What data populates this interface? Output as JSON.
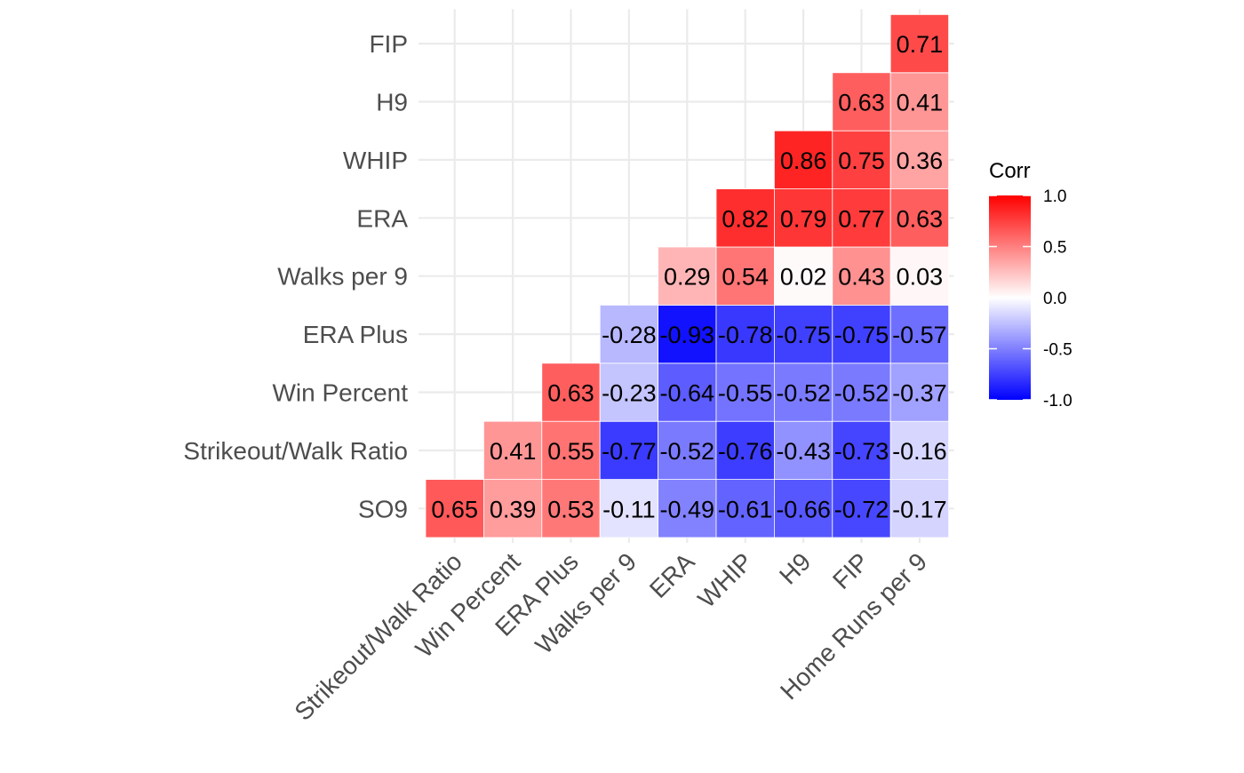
{
  "chart_data": {
    "type": "heatmap",
    "title": "",
    "xlabel": "",
    "ylabel": "",
    "x_categories": [
      "Strikeout/Walk Ratio",
      "Win Percent",
      "ERA Plus",
      "Walks per 9",
      "ERA",
      "WHIP",
      "H9",
      "FIP",
      "Home Runs per 9"
    ],
    "y_categories": [
      "SO9",
      "Strikeout/Walk Ratio",
      "Win Percent",
      "ERA Plus",
      "Walks per 9",
      "ERA",
      "WHIP",
      "H9",
      "FIP"
    ],
    "value_labels": [
      [
        "0.65",
        "0.39",
        "0.53",
        "-0.11",
        "-0.49",
        "-0.61",
        "-0.66",
        "-0.72",
        "-0.17"
      ],
      [
        null,
        "0.41",
        "0.55",
        "-0.77",
        "-0.52",
        "-0.76",
        "-0.43",
        "-0.73",
        "-0.16"
      ],
      [
        null,
        null,
        "0.63",
        "-0.23",
        "-0.64",
        "-0.55",
        "-0.52",
        "-0.52",
        "-0.37"
      ],
      [
        null,
        null,
        null,
        "-0.28",
        "-0.93",
        "-0.78",
        "-0.75",
        "-0.75",
        "-0.57"
      ],
      [
        null,
        null,
        null,
        null,
        "0.29",
        "0.54",
        "0.02",
        "0.43",
        "0.03"
      ],
      [
        null,
        null,
        null,
        null,
        null,
        "0.82",
        "0.79",
        "0.77",
        "0.63"
      ],
      [
        null,
        null,
        null,
        null,
        null,
        null,
        "0.86",
        "0.75",
        "0.36"
      ],
      [
        null,
        null,
        null,
        null,
        null,
        null,
        null,
        "0.63",
        "0.41"
      ],
      [
        null,
        null,
        null,
        null,
        null,
        null,
        null,
        null,
        "0.71"
      ]
    ],
    "values": [
      [
        0.65,
        0.39,
        0.53,
        -0.11,
        -0.49,
        -0.61,
        -0.66,
        -0.72,
        -0.17
      ],
      [
        null,
        0.41,
        0.55,
        -0.77,
        -0.52,
        -0.76,
        -0.43,
        -0.73,
        -0.16
      ],
      [
        null,
        null,
        0.63,
        -0.23,
        -0.64,
        -0.55,
        -0.52,
        -0.52,
        -0.37
      ],
      [
        null,
        null,
        null,
        -0.28,
        -0.93,
        -0.78,
        -0.75,
        -0.75,
        -0.57
      ],
      [
        null,
        null,
        null,
        null,
        0.29,
        0.54,
        0.02,
        0.43,
        0.03
      ],
      [
        null,
        null,
        null,
        null,
        null,
        0.82,
        0.79,
        0.77,
        0.63
      ],
      [
        null,
        null,
        null,
        null,
        null,
        null,
        0.86,
        0.75,
        0.36
      ],
      [
        null,
        null,
        null,
        null,
        null,
        null,
        null,
        0.63,
        0.41
      ],
      [
        null,
        null,
        null,
        null,
        null,
        null,
        null,
        null,
        0.71
      ]
    ],
    "legend": {
      "title": "Corr",
      "placement": "right",
      "range": [
        -1,
        1
      ],
      "ticks": [
        1.0,
        0.5,
        0.0,
        -0.5,
        -1.0
      ],
      "tick_labels": [
        "1.0",
        "0.5",
        "0.0",
        "-0.5",
        "-1.0"
      ]
    },
    "colors": {
      "low": "#0000ff",
      "mid": "#ffffff",
      "high": "#ff0000",
      "grid": "#ebebeb"
    },
    "grid": true
  }
}
